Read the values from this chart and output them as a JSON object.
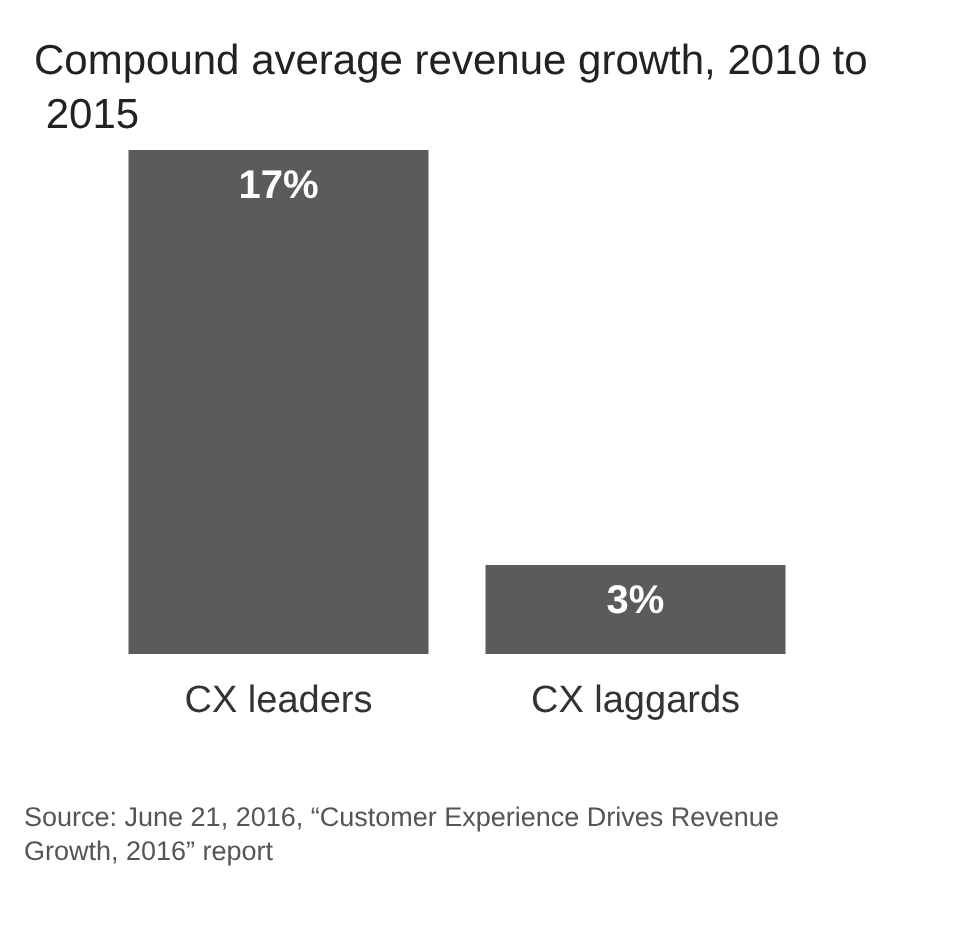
{
  "chart_data": {
    "type": "bar",
    "title": "Compound average revenue growth, 2010 to 2015",
    "categories": [
      "CX leaders",
      "CX laggards"
    ],
    "values": [
      17,
      3
    ],
    "value_labels": [
      "17%",
      "3%"
    ],
    "color": "#5b5b5b",
    "annotations": [
      "Source: June 21, 2016, “Customer Experience Drives Revenue Growth, 2016” report"
    ]
  }
}
